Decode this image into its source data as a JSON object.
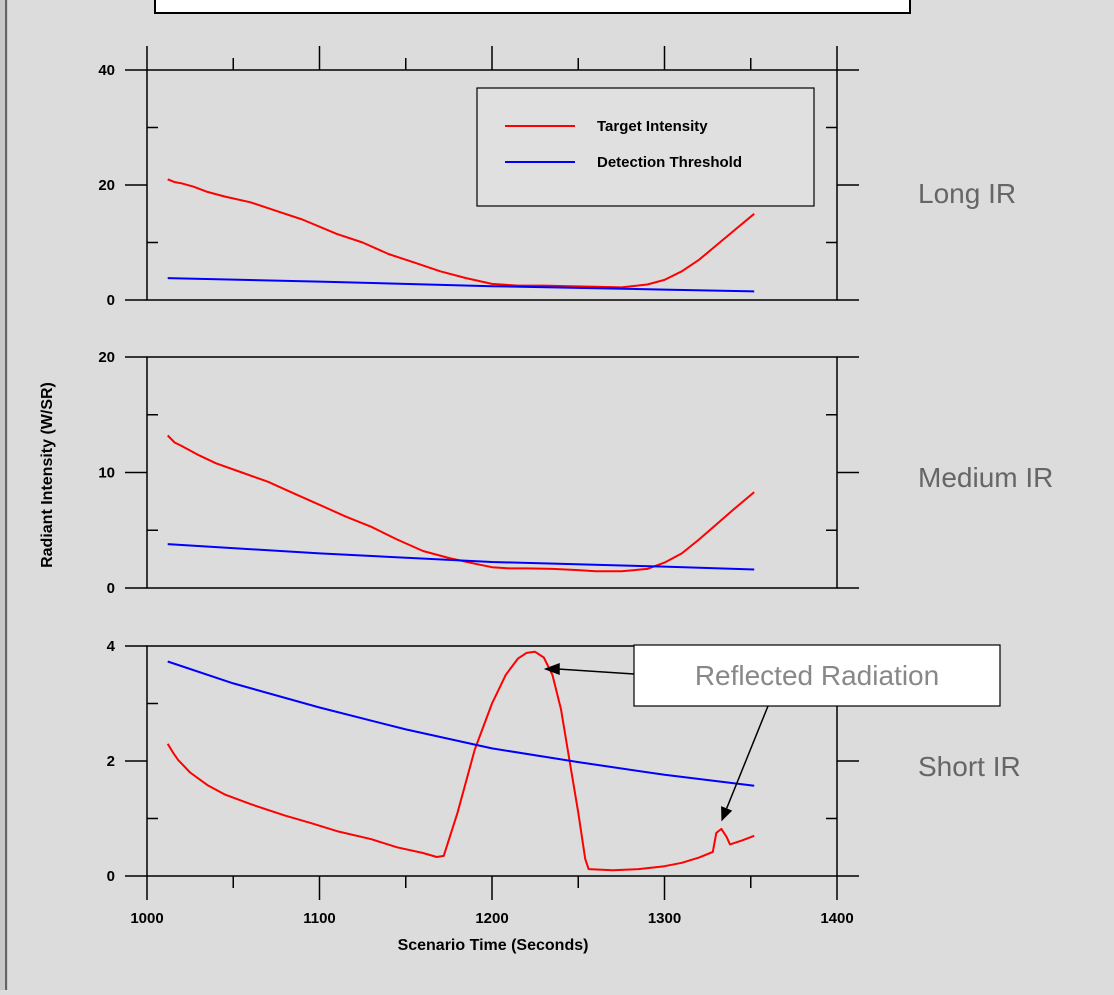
{
  "chart_data": {
    "type": "line",
    "xlabel": "Scenario Time (Seconds)",
    "ylabel": "Radiant Intensity (W/SR)",
    "xlim": [
      1000,
      1400
    ],
    "xticks": [
      "1000",
      "1100",
      "1200",
      "1300",
      "1400"
    ],
    "legend": {
      "placement": "top-right of top panel",
      "entries": [
        {
          "label": "Target Intensity",
          "color": "#ff0000"
        },
        {
          "label": "Detection Threshold",
          "color": "#0000ff"
        }
      ]
    },
    "panels": [
      {
        "label": "Long IR",
        "ylim": [
          0,
          40
        ],
        "yticks": [
          "0",
          "20",
          "40"
        ],
        "series": [
          {
            "name": "Target Intensity",
            "color": "#ff0000",
            "x": [
              1012,
              1016,
              1020,
              1027,
              1035,
              1045,
              1060,
              1075,
              1090,
              1110,
              1125,
              1140,
              1155,
              1170,
              1185,
              1200,
              1215,
              1230,
              1245,
              1260,
              1275,
              1290,
              1300,
              1310,
              1320,
              1330,
              1340,
              1352
            ],
            "y": [
              21,
              20.5,
              20.3,
              19.7,
              18.8,
              18,
              17,
              15.5,
              14,
              11.5,
              10,
              8,
              6.5,
              5,
              3.8,
              2.8,
              2.5,
              2.5,
              2.4,
              2.3,
              2.2,
              2.7,
              3.5,
              5,
              7,
              9.5,
              12,
              15
            ]
          },
          {
            "name": "Detection Threshold",
            "color": "#0000ff",
            "x": [
              1012,
              1100,
              1200,
              1300,
              1352
            ],
            "y": [
              3.8,
              3.2,
              2.4,
              1.8,
              1.5
            ]
          }
        ]
      },
      {
        "label": "Medium IR",
        "ylim": [
          0,
          20
        ],
        "yticks": [
          "0",
          "10",
          "20"
        ],
        "series": [
          {
            "name": "Target Intensity",
            "color": "#ff0000",
            "x": [
              1012,
              1016,
              1020,
              1030,
              1040,
              1055,
              1070,
              1085,
              1100,
              1115,
              1130,
              1145,
              1160,
              1175,
              1190,
              1200,
              1210,
              1220,
              1235,
              1250,
              1260,
              1275,
              1290,
              1300,
              1310,
              1320,
              1330,
              1340,
              1352
            ],
            "y": [
              13.2,
              12.6,
              12.3,
              11.5,
              10.8,
              10,
              9.2,
              8.2,
              7.2,
              6.2,
              5.3,
              4.2,
              3.2,
              2.6,
              2.1,
              1.8,
              1.7,
              1.7,
              1.65,
              1.55,
              1.45,
              1.45,
              1.65,
              2.2,
              3,
              4.2,
              5.5,
              6.8,
              8.3
            ]
          },
          {
            "name": "Detection Threshold",
            "color": "#0000ff",
            "x": [
              1012,
              1100,
              1200,
              1300,
              1352
            ],
            "y": [
              3.8,
              3.0,
              2.25,
              1.85,
              1.6
            ]
          }
        ]
      },
      {
        "label": "Short IR",
        "ylim": [
          0,
          4
        ],
        "yticks": [
          "0",
          "2",
          "4"
        ],
        "series": [
          {
            "name": "Target Intensity",
            "color": "#ff0000",
            "x": [
              1012,
              1015,
              1018,
              1025,
              1035,
              1045,
              1060,
              1080,
              1095,
              1110,
              1130,
              1145,
              1160,
              1168,
              1172,
              1180,
              1190,
              1200,
              1208,
              1215,
              1220,
              1225,
              1230,
              1235,
              1240,
              1245,
              1250,
              1254,
              1256,
              1270,
              1285,
              1300,
              1310,
              1320,
              1328,
              1330,
              1333,
              1336,
              1338,
              1345,
              1352
            ],
            "y": [
              2.3,
              2.15,
              2.02,
              1.8,
              1.58,
              1.42,
              1.25,
              1.05,
              0.92,
              0.78,
              0.64,
              0.5,
              0.4,
              0.33,
              0.35,
              1.1,
              2.2,
              3.0,
              3.5,
              3.78,
              3.88,
              3.9,
              3.8,
              3.5,
              2.9,
              2.0,
              1.1,
              0.3,
              0.12,
              0.1,
              0.12,
              0.17,
              0.23,
              0.32,
              0.42,
              0.75,
              0.82,
              0.68,
              0.55,
              0.62,
              0.7
            ]
          },
          {
            "name": "Detection Threshold",
            "color": "#0000ff",
            "x": [
              1012,
              1050,
              1100,
              1150,
              1200,
              1250,
              1300,
              1352
            ],
            "y": [
              3.73,
              3.35,
              2.93,
              2.55,
              2.22,
              1.98,
              1.76,
              1.57
            ]
          }
        ]
      }
    ],
    "annotation": {
      "text": "Reflected Radiation",
      "targets": [
        {
          "panel": "Short IR",
          "x": 1230,
          "y": 3.6
        },
        {
          "panel": "Short IR",
          "x": 1333,
          "y": 0.95
        }
      ]
    }
  }
}
